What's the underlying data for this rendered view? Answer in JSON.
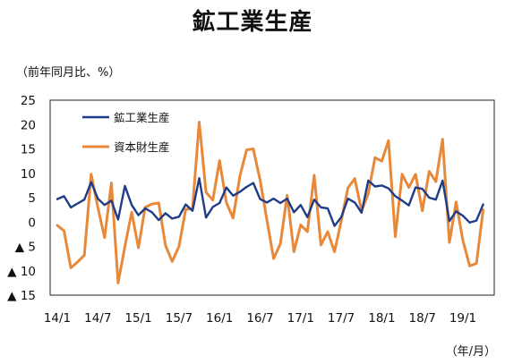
{
  "title": "鉱工業生産",
  "unit_y": "（前年同月比、%）",
  "unit_x": "（年/月）",
  "chart_data": {
    "type": "line",
    "title": "鉱工業生産",
    "ylabel": "（前年同月比、%）",
    "xlabel": "（年/月）",
    "ylim": [
      -15,
      25
    ],
    "y_ticks": [
      25,
      20,
      15,
      10,
      5,
      0,
      -5,
      -10,
      -15
    ],
    "y_tick_labels": [
      "25",
      "20",
      "15",
      "10",
      "5",
      "0",
      "▲ 5",
      "▲ 10",
      "▲ 15"
    ],
    "x_tick_labels": [
      "14/1",
      "14/7",
      "15/1",
      "15/7",
      "16/1",
      "16/7",
      "17/1",
      "17/7",
      "18/1",
      "18/7",
      "19/1"
    ],
    "x_tick_indices": [
      0,
      6,
      12,
      18,
      24,
      30,
      36,
      42,
      48,
      54,
      60
    ],
    "n_points": 64,
    "grid": false,
    "legend_position": "top-left",
    "series": [
      {
        "name": "鉱工業生産",
        "color": "#1f3c88",
        "values": [
          4.7,
          5.3,
          3.0,
          3.8,
          4.6,
          8.2,
          4.8,
          3.5,
          4.4,
          0.5,
          7.4,
          3.5,
          1.4,
          2.8,
          2.0,
          0.4,
          1.8,
          0.7,
          1.1,
          3.6,
          2.3,
          9.0,
          0.9,
          3.1,
          3.9,
          7.1,
          5.4,
          6.2,
          7.2,
          8.0,
          4.7,
          4.0,
          4.8,
          3.9,
          4.8,
          2.0,
          3.5,
          1.0,
          4.6,
          3.0,
          2.8,
          -0.8,
          1.0,
          4.8,
          4.0,
          1.9,
          8.5,
          7.3,
          7.5,
          6.9,
          5.3,
          4.4,
          3.4,
          7.1,
          6.8,
          5.0,
          4.6,
          8.5,
          0.2,
          2.2,
          1.3,
          -0.1,
          0.3,
          3.6
        ]
      },
      {
        "name": "資本財生産",
        "color": "#e8893a",
        "values": [
          -0.7,
          -1.8,
          -9.4,
          -8.2,
          -6.8,
          9.8,
          3.0,
          -3.2,
          8.0,
          -12.5,
          -5.0,
          2.0,
          -5.3,
          3.0,
          3.7,
          3.9,
          -4.8,
          -8.1,
          -5.0,
          2.6,
          2.8,
          20.5,
          6.1,
          4.5,
          12.6,
          4.0,
          0.8,
          9.4,
          14.8,
          15.0,
          8.6,
          0.5,
          -7.5,
          -4.5,
          5.5,
          -6.1,
          -0.6,
          -2.0,
          9.6,
          -4.7,
          -2.0,
          -6.1,
          0.2,
          7.0,
          8.9,
          2.3,
          5.8,
          13.2,
          12.5,
          16.7,
          -3.0,
          9.8,
          7.1,
          9.8,
          2.3,
          10.4,
          8.3,
          17.0,
          -4.2,
          4.1,
          -3.8,
          -9.0,
          -8.5,
          2.5
        ]
      }
    ]
  }
}
